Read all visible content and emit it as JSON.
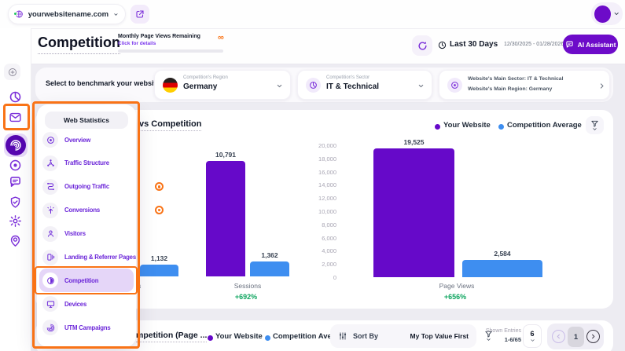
{
  "colors": {
    "accent_purple": "#6D0BC9",
    "bar_purple": "#6609C9",
    "bar_blue": "#3E8EF0",
    "positive_green": "#0EA55F",
    "annotation_orange": "#F97316"
  },
  "topbar": {
    "website": "yourwebsitename.com",
    "website_status_icon": "globe-icon",
    "open_icon": "external-link-icon"
  },
  "header": {
    "title": "Competition",
    "quota_label": "Monthly Page Views Remaining",
    "quota_link": "Click for details",
    "quota_value": "∞",
    "period_label": "Last 30 Days",
    "date_range": "12/30/2025 - 01/28/2026",
    "ai_button": "AI Assistant"
  },
  "benchmark": {
    "label": "Select to benchmark your website:",
    "region": {
      "label": "Competition's Region",
      "value": "Germany",
      "flag": "germany-flag-icon"
    },
    "sector": {
      "label": "Competition's Sector",
      "value": "IT & Technical",
      "icon": "pie-icon"
    },
    "site_info": {
      "line1": "Website's Main Sector: IT & Technical",
      "line2": "Website's Main Region: Germany",
      "icon": "target-icon"
    }
  },
  "sidebar": {
    "items": [
      {
        "icon": "add-circle-icon",
        "style": "top-button"
      },
      {
        "icon": "pie-icon"
      },
      {
        "icon": "mail-icon"
      },
      {
        "icon": "radar-icon",
        "active": true
      },
      {
        "icon": "target-icon"
      },
      {
        "icon": "chat-icon"
      },
      {
        "icon": "shield-icon"
      },
      {
        "icon": "gear-icon"
      },
      {
        "icon": "pin-person-icon"
      }
    ]
  },
  "menu": {
    "header": "Web Statistics",
    "items": [
      {
        "label": "Overview",
        "icon": "target-icon"
      },
      {
        "label": "Traffic Structure",
        "icon": "network-icon"
      },
      {
        "label": "Outgoing Traffic",
        "icon": "route-icon",
        "badge": true
      },
      {
        "label": "Conversions",
        "icon": "conversion-icon",
        "badge": true
      },
      {
        "label": "Visitors",
        "icon": "user-icon"
      },
      {
        "label": "Landing & Referrer Pages",
        "icon": "pages-icon"
      },
      {
        "label": "Competition",
        "icon": "competition-icon",
        "active": true
      },
      {
        "label": "Devices",
        "icon": "monitor-icon"
      },
      {
        "label": "UTM Campaigns",
        "icon": "utm-icon"
      }
    ]
  },
  "chart_data": {
    "type": "grouped-bar",
    "title_visible_fragment": "vs Competition",
    "legend": [
      {
        "label": "Your Website",
        "color": "#6609C9"
      },
      {
        "label": "Competition Average",
        "color": "#3E8EF0"
      }
    ],
    "panels": [
      {
        "name": "left-panel",
        "ylim": [
          0,
          12000
        ],
        "y_axis_visible": false,
        "groups": [
          {
            "category_visible_fragment": "s",
            "values": [
              null,
              1132
            ],
            "delta": null
          },
          {
            "category": "Sessions",
            "values": [
              10791,
              1362
            ],
            "delta": "+692%"
          }
        ]
      },
      {
        "name": "right-panel",
        "ylim": [
          0,
          20000
        ],
        "y_axis_visible": true,
        "yticks": [
          "20,000",
          "18,000",
          "16,000",
          "14,000",
          "12,000",
          "10,000",
          "8,000",
          "6,000",
          "4,000",
          "2,000",
          "0"
        ],
        "groups": [
          {
            "category": "Page Views",
            "values": [
              19525,
              2584
            ],
            "delta": "+656%"
          }
        ]
      }
    ]
  },
  "bottom_card": {
    "title_visible_fragment": "mpetition (Page ...",
    "sort_by_label": "Sort By",
    "sort_value": "My Top Value First",
    "shown_entries_label": "Shown Entries",
    "shown_entries_value": "1-6/65",
    "page_size": "6",
    "page_number": "1"
  }
}
